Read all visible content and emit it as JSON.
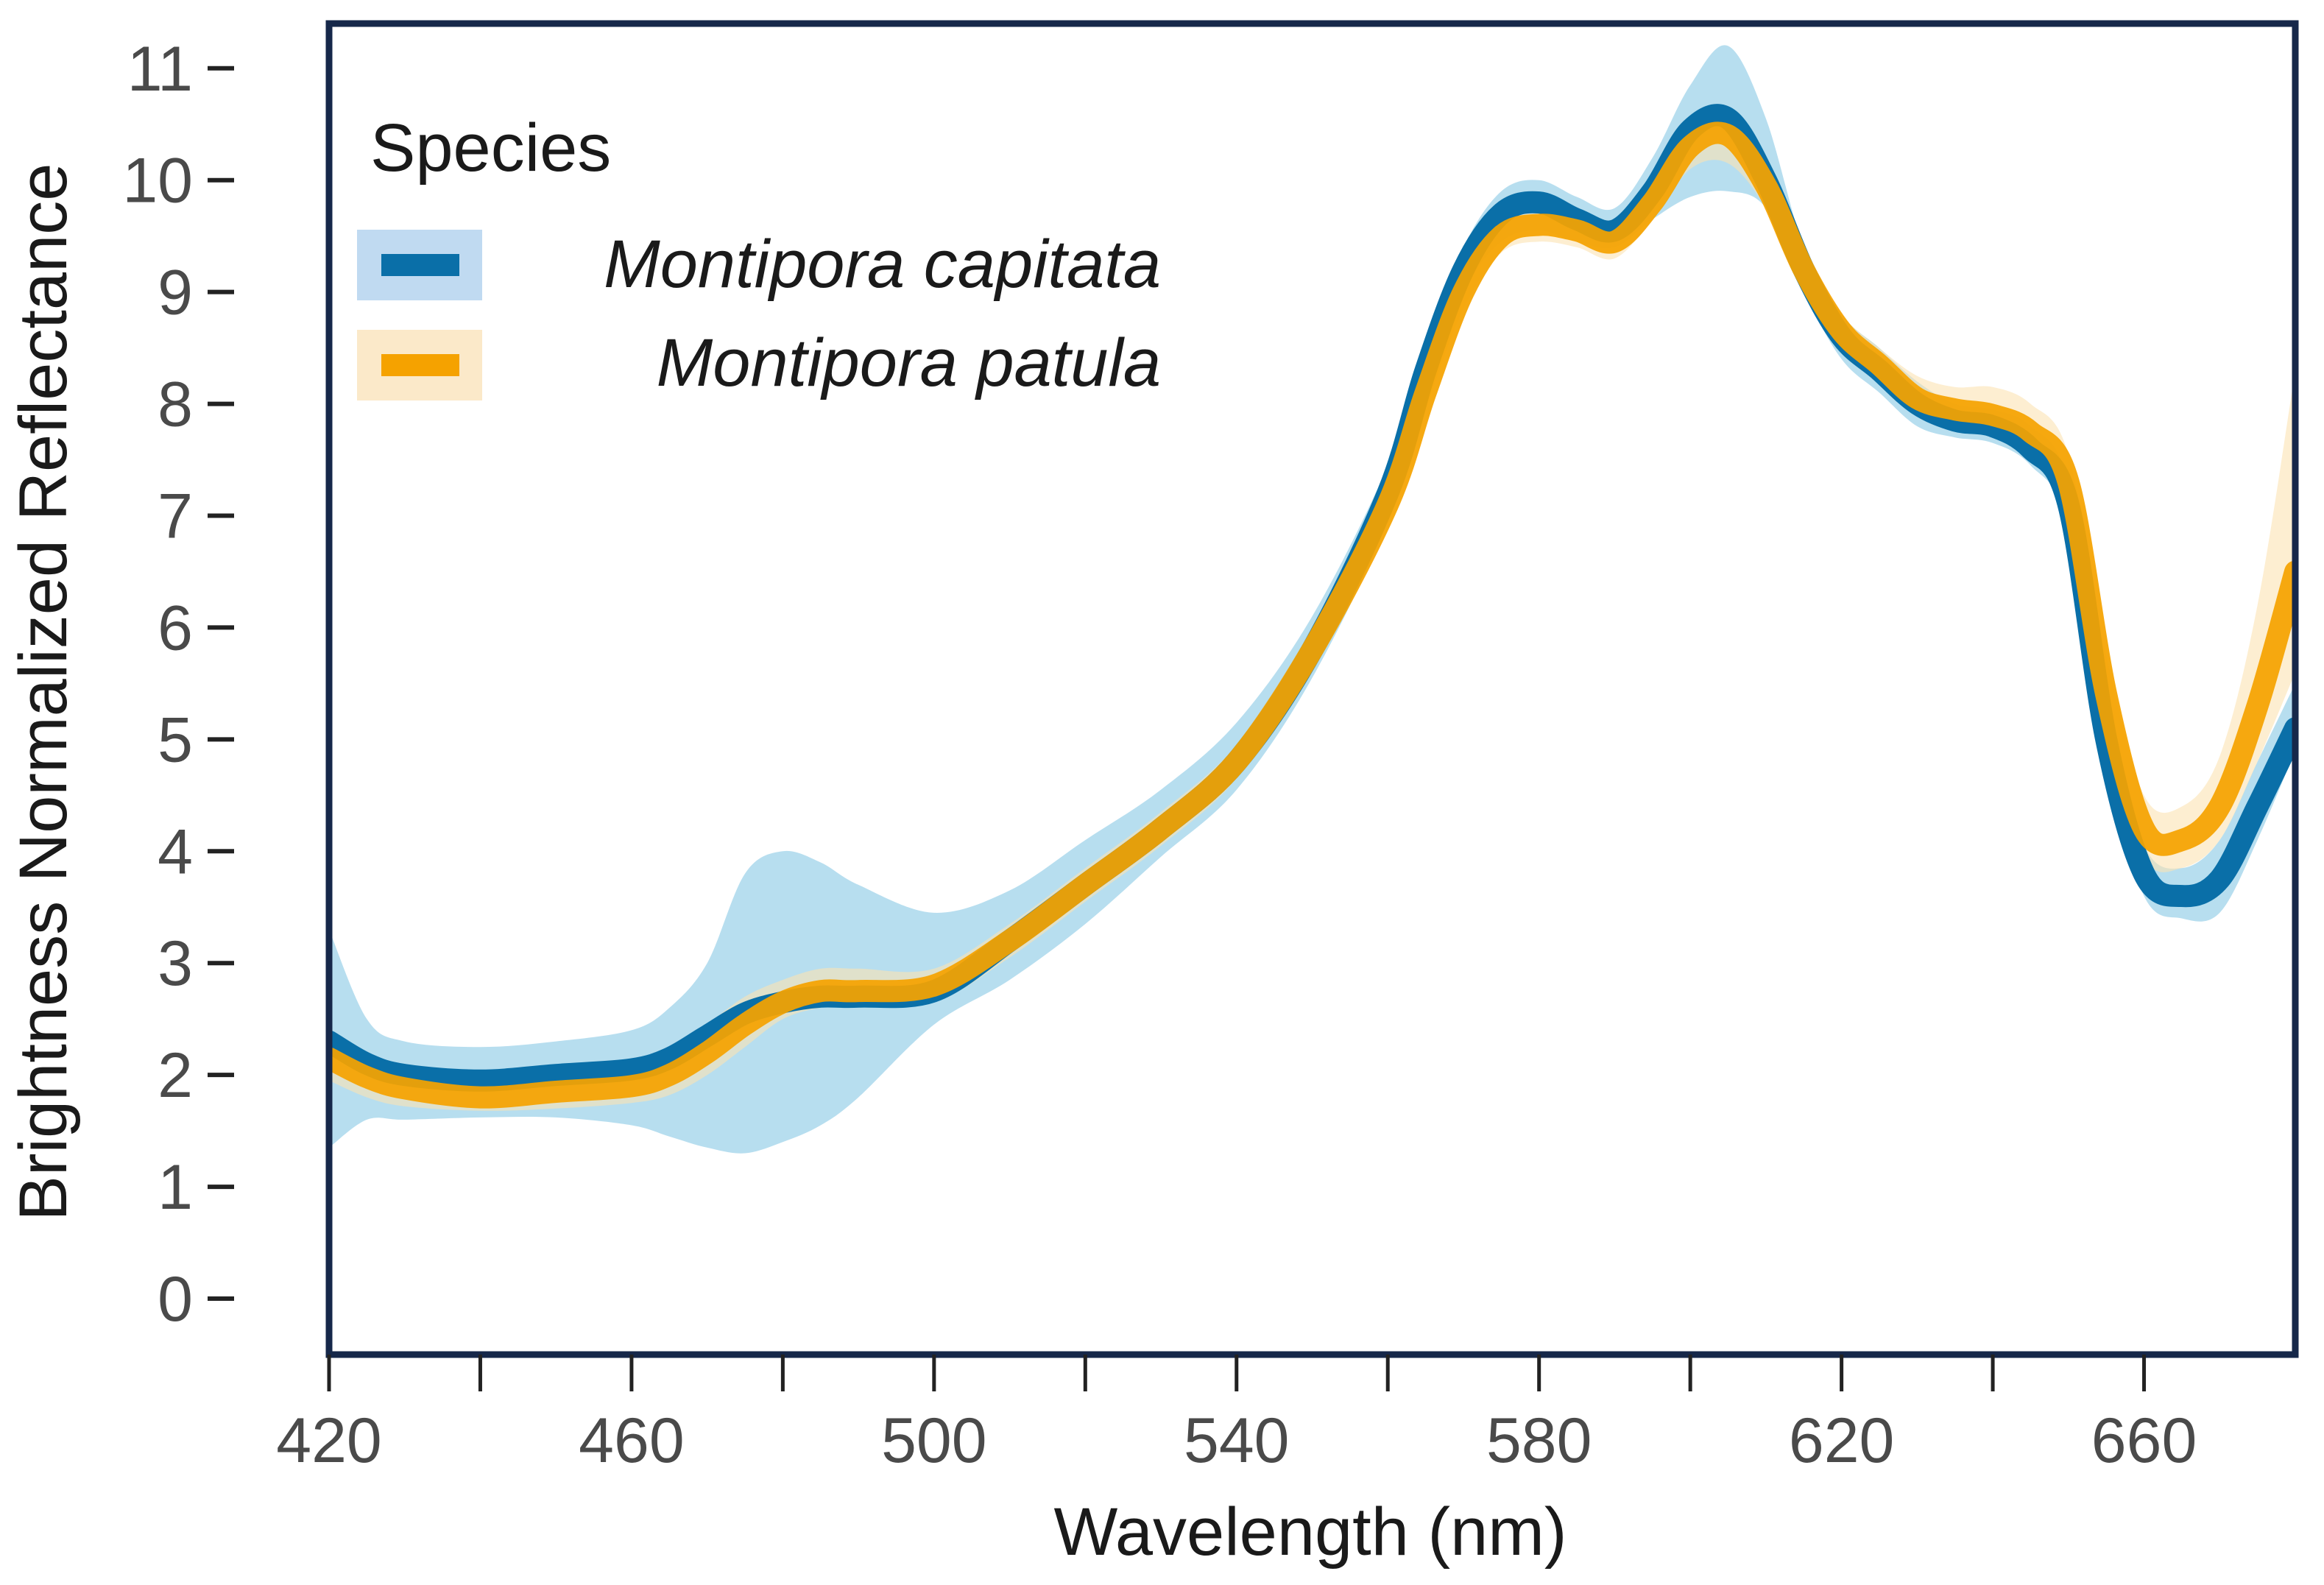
{
  "chart_data": {
    "type": "line",
    "title": "",
    "xlabel": "Wavelength (nm)",
    "ylabel": "Brightness Normalized Reflectance",
    "xlim": [
      420,
      680
    ],
    "ylim": [
      -0.5,
      11.4
    ],
    "xticks": [
      420,
      460,
      500,
      540,
      580,
      620,
      660
    ],
    "xtick_labels": [
      "420",
      "460",
      "500",
      "540",
      "580",
      "620",
      "660"
    ],
    "xminor_ticks": [
      440,
      480,
      520,
      560,
      600,
      640
    ],
    "yticks": [
      0,
      1,
      2,
      3,
      4,
      5,
      6,
      7,
      8,
      9,
      10,
      11
    ],
    "ytick_labels": [
      "0",
      "1",
      "2",
      "3",
      "4",
      "5",
      "6",
      "7",
      "8",
      "9",
      "10",
      "11"
    ],
    "grid": false,
    "legend": {
      "title": "Species",
      "placement": "top-left"
    },
    "x": [
      420,
      425,
      430,
      440,
      450,
      460,
      465,
      470,
      475,
      480,
      485,
      490,
      500,
      510,
      520,
      530,
      540,
      550,
      560,
      565,
      570,
      575,
      580,
      585,
      590,
      595,
      600,
      605,
      610,
      615,
      620,
      625,
      630,
      635,
      640,
      645,
      650,
      655,
      660,
      665,
      670,
      675,
      680
    ],
    "series": [
      {
        "name": "Montipora capitata",
        "color": "#0a6fa8",
        "band_color": "#9fd3ea",
        "values": [
          2.3,
          2.1,
          2.0,
          1.95,
          2.0,
          2.05,
          2.15,
          2.35,
          2.55,
          2.65,
          2.7,
          2.7,
          2.75,
          3.2,
          3.7,
          4.2,
          4.8,
          5.8,
          7.2,
          8.3,
          9.2,
          9.7,
          9.8,
          9.65,
          9.55,
          9.9,
          10.45,
          10.55,
          10.0,
          9.2,
          8.6,
          8.3,
          8.0,
          7.85,
          7.8,
          7.6,
          7.1,
          5.0,
          3.8,
          3.6,
          3.75,
          4.4,
          5.1
        ],
        "lower": [
          1.35,
          1.6,
          1.6,
          1.62,
          1.62,
          1.55,
          1.45,
          1.35,
          1.3,
          1.4,
          1.55,
          1.8,
          2.45,
          2.85,
          3.35,
          3.95,
          4.55,
          5.55,
          6.95,
          8.1,
          9.0,
          9.45,
          9.55,
          9.45,
          9.4,
          9.65,
          9.85,
          9.9,
          9.75,
          9.0,
          8.4,
          8.1,
          7.8,
          7.7,
          7.65,
          7.45,
          6.9,
          4.8,
          3.6,
          3.4,
          3.45,
          4.1,
          4.9
        ],
        "upper": [
          3.3,
          2.5,
          2.3,
          2.25,
          2.3,
          2.4,
          2.6,
          3.0,
          3.8,
          4.0,
          3.9,
          3.7,
          3.45,
          3.65,
          4.1,
          4.55,
          5.15,
          6.1,
          7.45,
          8.5,
          9.4,
          9.9,
          10.0,
          9.85,
          9.75,
          10.2,
          10.85,
          11.2,
          10.55,
          9.4,
          8.8,
          8.5,
          8.2,
          8.0,
          7.95,
          7.8,
          7.3,
          5.25,
          4.05,
          3.85,
          4.1,
          4.8,
          5.5
        ]
      },
      {
        "name": "Montipora patula",
        "color": "#f5a200",
        "band_color": "#fbe3b3",
        "values": [
          2.15,
          1.98,
          1.88,
          1.8,
          1.85,
          1.9,
          2.0,
          2.2,
          2.45,
          2.65,
          2.75,
          2.75,
          2.8,
          3.2,
          3.7,
          4.2,
          4.8,
          5.8,
          7.1,
          8.1,
          9.0,
          9.5,
          9.6,
          9.55,
          9.45,
          9.8,
          10.3,
          10.4,
          9.95,
          9.2,
          8.65,
          8.35,
          8.05,
          7.95,
          7.9,
          7.75,
          7.3,
          5.4,
          4.2,
          4.1,
          4.4,
          5.3,
          6.5
        ],
        "lower": [
          1.95,
          1.8,
          1.72,
          1.68,
          1.7,
          1.75,
          1.82,
          2.0,
          2.25,
          2.5,
          2.6,
          2.62,
          2.65,
          3.05,
          3.55,
          4.05,
          4.65,
          5.65,
          6.95,
          7.95,
          8.85,
          9.35,
          9.45,
          9.4,
          9.3,
          9.65,
          10.1,
          10.15,
          9.75,
          9.05,
          8.5,
          8.2,
          7.9,
          7.8,
          7.75,
          7.55,
          7.05,
          5.1,
          3.95,
          3.85,
          4.1,
          4.8,
          5.6
        ],
        "upper": [
          2.35,
          2.15,
          2.05,
          1.95,
          2.0,
          2.05,
          2.2,
          2.45,
          2.7,
          2.85,
          2.95,
          2.95,
          2.95,
          3.35,
          3.85,
          4.35,
          4.95,
          5.95,
          7.25,
          8.25,
          9.15,
          9.65,
          9.75,
          9.7,
          9.6,
          9.95,
          10.5,
          10.65,
          10.15,
          9.35,
          8.8,
          8.5,
          8.25,
          8.15,
          8.15,
          8.0,
          7.55,
          5.75,
          4.5,
          4.4,
          4.85,
          6.2,
          8.3
        ]
      }
    ]
  }
}
